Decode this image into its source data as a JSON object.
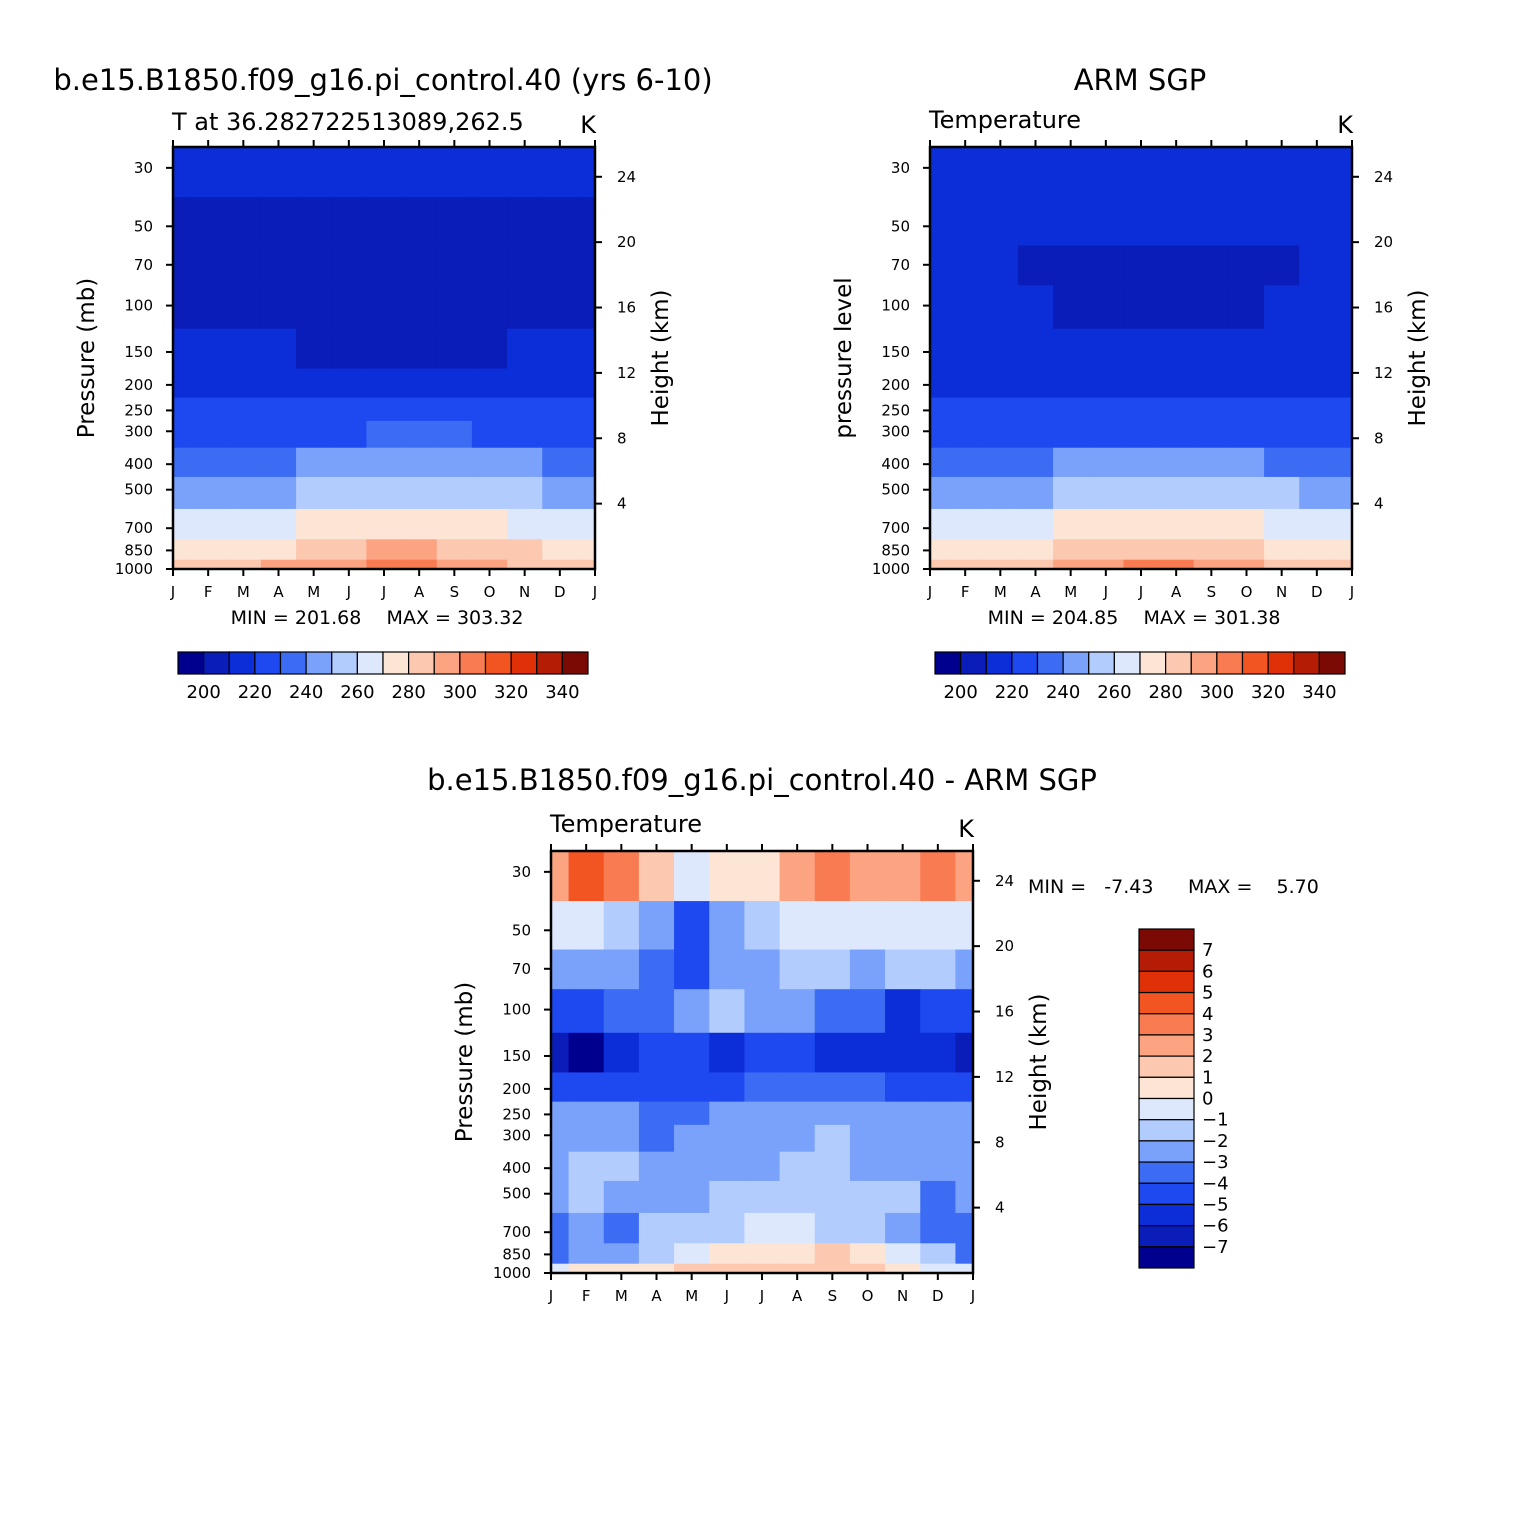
{
  "figure": {
    "page_title": "b.e15.B1850.f09_g16.pi_control.40 - ARM SGP"
  },
  "shared_axes": {
    "months": [
      "J",
      "F",
      "M",
      "A",
      "M",
      "J",
      "J",
      "A",
      "S",
      "O",
      "N",
      "D",
      "J"
    ],
    "pressure_ticks": [
      "30",
      "50",
      "70",
      "100",
      "150",
      "200",
      "250",
      "300",
      "400",
      "500",
      "700",
      "850",
      "1000"
    ],
    "height_ticks": [
      "24",
      "20",
      "16",
      "12",
      "8",
      "4"
    ],
    "pressure_label": "Pressure (mb)",
    "height_label": "Height (km)",
    "units": "K"
  },
  "chart_data": [
    {
      "id": "model",
      "type": "heatmap",
      "title": "b.e15.B1850.f09_g16.pi_control.40 (yrs 6-10)",
      "subtitle": "T at 36.282722513089,262.5",
      "units": "K",
      "ylabel": "Pressure (mb)",
      "ylabel_right": "Height (km)",
      "x": [
        "J",
        "F",
        "M",
        "A",
        "M",
        "J",
        "J",
        "A",
        "S",
        "O",
        "N",
        "D",
        "J"
      ],
      "y_pressure_mb": [
        30,
        50,
        70,
        100,
        150,
        200,
        250,
        300,
        400,
        500,
        700,
        850,
        1000
      ],
      "y_log_scale": true,
      "min_label": "MIN = 201.68",
      "max_label": "MAX = 303.32",
      "min": 201.68,
      "max": 303.32,
      "colorbar_ticks": [
        "200",
        "220",
        "240",
        "260",
        "280",
        "300",
        "320",
        "340"
      ],
      "levels": [
        195,
        200,
        210,
        220,
        230,
        240,
        250,
        260,
        270,
        280,
        290,
        300,
        310,
        320,
        330,
        340
      ],
      "values_by_level": [
        [
          216,
          215,
          215,
          213,
          212,
          211,
          211,
          211,
          211,
          212,
          213,
          215,
          216
        ],
        [
          208,
          208,
          208,
          208,
          207,
          206,
          206,
          206,
          206,
          206,
          207,
          208,
          208
        ],
        [
          206,
          206,
          206,
          206,
          205,
          204,
          203,
          203,
          203,
          204,
          205,
          206,
          206
        ],
        [
          209,
          208,
          208,
          207,
          206,
          205,
          204,
          204,
          204,
          205,
          207,
          208,
          209
        ],
        [
          213,
          212,
          212,
          210,
          208,
          207,
          206,
          206,
          207,
          208,
          210,
          212,
          213
        ],
        [
          218,
          217,
          217,
          216,
          215,
          215,
          215,
          216,
          216,
          216,
          217,
          218,
          218
        ],
        [
          222,
          222,
          222,
          221,
          221,
          222,
          223,
          223,
          223,
          222,
          221,
          221,
          222
        ],
        [
          227,
          227,
          227,
          227,
          228,
          229,
          230,
          230,
          230,
          229,
          228,
          227,
          227
        ],
        [
          238,
          238,
          238,
          239,
          241,
          243,
          244,
          244,
          243,
          242,
          240,
          239,
          238
        ],
        [
          247,
          247,
          247,
          249,
          252,
          254,
          256,
          256,
          255,
          253,
          250,
          248,
          247
        ],
        [
          264,
          264,
          265,
          267,
          271,
          274,
          276,
          276,
          274,
          271,
          268,
          265,
          264
        ],
        [
          276,
          276,
          277,
          279,
          284,
          288,
          290,
          290,
          288,
          284,
          280,
          277,
          276
        ],
        [
          284,
          285,
          287,
          290,
          295,
          299,
          302,
          302,
          299,
          294,
          289,
          286,
          284
        ]
      ]
    },
    {
      "id": "obs",
      "type": "heatmap",
      "title": "ARM SGP",
      "subtitle": "Temperature",
      "units": "K",
      "ylabel": "pressure level",
      "ylabel_right": "Height (km)",
      "x": [
        "J",
        "F",
        "M",
        "A",
        "M",
        "J",
        "J",
        "A",
        "S",
        "O",
        "N",
        "D",
        "J"
      ],
      "y_pressure_mb": [
        30,
        50,
        70,
        100,
        150,
        200,
        250,
        300,
        400,
        500,
        700,
        850,
        1000
      ],
      "y_log_scale": true,
      "min_label": "MIN = 204.85",
      "max_label": "MAX = 301.38",
      "min": 204.85,
      "max": 301.38,
      "colorbar_ticks": [
        "200",
        "220",
        "240",
        "260",
        "280",
        "300",
        "320",
        "340"
      ],
      "levels": [
        195,
        200,
        210,
        220,
        230,
        240,
        250,
        260,
        270,
        280,
        290,
        300,
        310,
        320,
        330,
        340
      ],
      "values_by_level": [
        [
          217,
          217,
          217,
          216,
          215,
          214,
          214,
          214,
          214,
          215,
          216,
          217,
          217
        ],
        [
          210,
          210,
          211,
          211,
          211,
          210,
          210,
          210,
          210,
          210,
          211,
          211,
          210
        ],
        [
          211,
          210,
          210,
          209,
          209,
          209,
          209,
          209,
          209,
          209,
          209,
          210,
          211
        ],
        [
          214,
          213,
          212,
          211,
          209,
          208,
          207,
          207,
          207,
          208,
          210,
          212,
          214
        ],
        [
          217,
          216,
          216,
          215,
          213,
          211,
          210,
          210,
          210,
          211,
          213,
          215,
          217
        ],
        [
          219,
          219,
          219,
          219,
          218,
          217,
          217,
          217,
          217,
          217,
          218,
          219,
          219
        ],
        [
          221,
          221,
          221,
          221,
          221,
          222,
          223,
          223,
          223,
          222,
          221,
          221,
          221
        ],
        [
          225,
          225,
          225,
          226,
          227,
          228,
          229,
          229,
          229,
          228,
          227,
          226,
          225
        ],
        [
          236,
          236,
          237,
          238,
          240,
          242,
          243,
          243,
          242,
          241,
          239,
          237,
          236
        ],
        [
          246,
          246,
          247,
          249,
          252,
          254,
          255,
          255,
          254,
          252,
          250,
          247,
          246
        ],
        [
          264,
          264,
          265,
          267,
          270,
          273,
          275,
          275,
          273,
          270,
          267,
          265,
          264
        ],
        [
          275,
          275,
          276,
          278,
          282,
          286,
          288,
          288,
          286,
          282,
          279,
          276,
          275
        ],
        [
          283,
          284,
          286,
          289,
          293,
          297,
          300,
          300,
          297,
          293,
          288,
          285,
          283
        ]
      ]
    },
    {
      "id": "diff",
      "type": "heatmap",
      "title": "b.e15.B1850.f09_g16.pi_control.40 - ARM SGP",
      "subtitle": "Temperature",
      "units": "K",
      "ylabel": "Pressure (mb)",
      "ylabel_right": "Height (km)",
      "x": [
        "J",
        "F",
        "M",
        "A",
        "M",
        "J",
        "J",
        "A",
        "S",
        "O",
        "N",
        "D",
        "J"
      ],
      "y_pressure_mb": [
        30,
        50,
        70,
        100,
        150,
        200,
        250,
        300,
        400,
        500,
        700,
        850,
        1000
      ],
      "y_log_scale": true,
      "min_label": "MIN =   -7.43",
      "max_label": "MAX =    5.70",
      "min": -7.43,
      "max": 5.7,
      "colorbar_ticks": [
        "7",
        "6",
        "5",
        "4",
        "3",
        "2",
        "1",
        "0",
        "-1",
        "-2",
        "-3",
        "-4",
        "-5",
        "-6",
        "-7"
      ],
      "levels": [
        -8,
        -7,
        -6,
        -5,
        -4,
        -3,
        -2,
        -1,
        0,
        1,
        2,
        3,
        4,
        5,
        6,
        7,
        8
      ],
      "values_by_level": [
        [
          2.5,
          4.5,
          3.0,
          1.0,
          -0.5,
          0.5,
          0.5,
          2.0,
          3.0,
          2.0,
          2.5,
          3.0,
          2.5
        ],
        [
          -0.5,
          -1.0,
          -2.0,
          -3.0,
          -4.5,
          -2.5,
          -1.5,
          -0.5,
          -0.5,
          -1.0,
          -0.5,
          -1.0,
          -0.5
        ],
        [
          -2.5,
          -3.0,
          -3.0,
          -3.5,
          -4.5,
          -3.0,
          -2.5,
          -2.0,
          -2.0,
          -2.5,
          -2.0,
          -1.5,
          -2.5
        ],
        [
          -4.5,
          -4.5,
          -4.0,
          -3.5,
          -3.0,
          -1.5,
          -3.0,
          -3.0,
          -3.5,
          -4.0,
          -5.5,
          -4.5,
          -4.5
        ],
        [
          -6.5,
          -7.2,
          -5.5,
          -5.0,
          -5.0,
          -6.0,
          -5.0,
          -4.5,
          -5.5,
          -5.5,
          -6.0,
          -6.0,
          -6.5
        ],
        [
          -5.0,
          -5.0,
          -5.0,
          -4.5,
          -4.5,
          -4.5,
          -4.0,
          -4.0,
          -4.0,
          -4.0,
          -4.5,
          -4.5,
          -5.0
        ],
        [
          -3.0,
          -2.5,
          -2.5,
          -3.5,
          -3.5,
          -3.0,
          -3.0,
          -2.5,
          -2.5,
          -3.0,
          -3.0,
          -3.0,
          -3.0
        ],
        [
          -3.0,
          -2.5,
          -2.5,
          -3.5,
          -2.5,
          -2.5,
          -2.5,
          -2.5,
          -1.5,
          -2.5,
          -2.5,
          -3.0,
          -3.0
        ],
        [
          -3.0,
          -2.0,
          -1.5,
          -2.5,
          -3.0,
          -2.5,
          -2.5,
          -2.0,
          -2.0,
          -2.5,
          -2.5,
          -2.5,
          -3.0
        ],
        [
          -3.0,
          -1.5,
          -2.5,
          -3.0,
          -2.5,
          -2.0,
          -2.0,
          -1.5,
          -1.5,
          -2.0,
          -2.0,
          -3.5,
          -3.0
        ],
        [
          -4.0,
          -2.5,
          -3.5,
          -2.0,
          -2.0,
          -1.5,
          -0.5,
          -1.0,
          -1.5,
          -2.0,
          -2.5,
          -4.0,
          -4.0
        ],
        [
          -4.0,
          -3.0,
          -2.5,
          -1.5,
          -0.5,
          0.5,
          0.5,
          0.5,
          1.0,
          0.5,
          -0.5,
          -2.0,
          -4.0
        ],
        [
          -0.5,
          0.5,
          0.5,
          0.5,
          1.0,
          1.0,
          1.5,
          1.5,
          1.5,
          1.5,
          0.5,
          -0.5,
          -0.5
        ]
      ]
    }
  ],
  "colors": {
    "temp_palette": [
      "#00008e",
      "#0a1db8",
      "#0c2ed8",
      "#1e48f0",
      "#3c6cf4",
      "#7ba2fa",
      "#b2ccfe",
      "#dde8fd",
      "#fde5d5",
      "#fdc8b0",
      "#fca482",
      "#f97b52",
      "#f25422",
      "#df3008",
      "#b51c06",
      "#7c0a04"
    ],
    "diff_palette": [
      "#00008e",
      "#0a1db8",
      "#0c2ed8",
      "#1e48f0",
      "#3c6cf4",
      "#7ba2fa",
      "#b2ccfe",
      "#dde8fd",
      "#fde5d5",
      "#fdc8b0",
      "#fca482",
      "#f97b52",
      "#f25422",
      "#df3008",
      "#b51c06",
      "#7c0a04"
    ]
  }
}
